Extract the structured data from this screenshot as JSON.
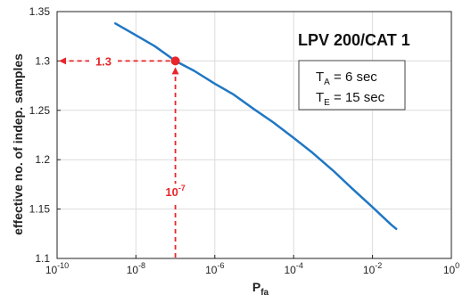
{
  "chart_data": {
    "type": "line",
    "title": "LPV 200/CAT 1",
    "xlabel": "P",
    "xlabel_sub": "fa",
    "ylabel": "effective no. of indep. samples",
    "xscale": "log",
    "xlim": [
      1e-10,
      1
    ],
    "ylim": [
      1.1,
      1.35
    ],
    "x_ticks": [
      1e-10,
      1e-08,
      1e-06,
      0.0001,
      0.01,
      1
    ],
    "x_tick_labels": [
      {
        "base": "10",
        "exp": "-10"
      },
      {
        "base": "10",
        "exp": "-8"
      },
      {
        "base": "10",
        "exp": "-6"
      },
      {
        "base": "10",
        "exp": "-4"
      },
      {
        "base": "10",
        "exp": "-2"
      },
      {
        "base": "10",
        "exp": "0"
      }
    ],
    "y_ticks": [
      1.1,
      1.15,
      1.2,
      1.25,
      1.3,
      1.35
    ],
    "y_tick_labels": [
      "1.1",
      "1.15",
      "1.2",
      "1.25",
      "1.3",
      "1.35"
    ],
    "grid": true,
    "series": [
      {
        "color": "#1f77c4",
        "x": [
          3e-09,
          1e-08,
          3e-08,
          1e-07,
          3e-07,
          1e-06,
          3e-06,
          1e-05,
          3e-05,
          0.0001,
          0.0003,
          0.001,
          0.003,
          0.01,
          0.03,
          0.04
        ],
        "y": [
          1.338,
          1.326,
          1.315,
          1.3,
          1.29,
          1.277,
          1.266,
          1.251,
          1.238,
          1.222,
          1.207,
          1.189,
          1.171,
          1.152,
          1.134,
          1.13
        ]
      }
    ],
    "highlight_point": {
      "x": 1e-07,
      "y": 1.3,
      "color": "#e8262a"
    },
    "annotations": {
      "y_value": "1.3",
      "x_value_base": "10",
      "x_value_exp": "-7",
      "color": "#e8262a"
    },
    "info_box": {
      "line1_main": "T",
      "line1_sub": "A",
      "line1_rest": " = 6 sec",
      "line2_main": "T",
      "line2_sub": "E",
      "line2_rest": " = 15 sec"
    }
  }
}
